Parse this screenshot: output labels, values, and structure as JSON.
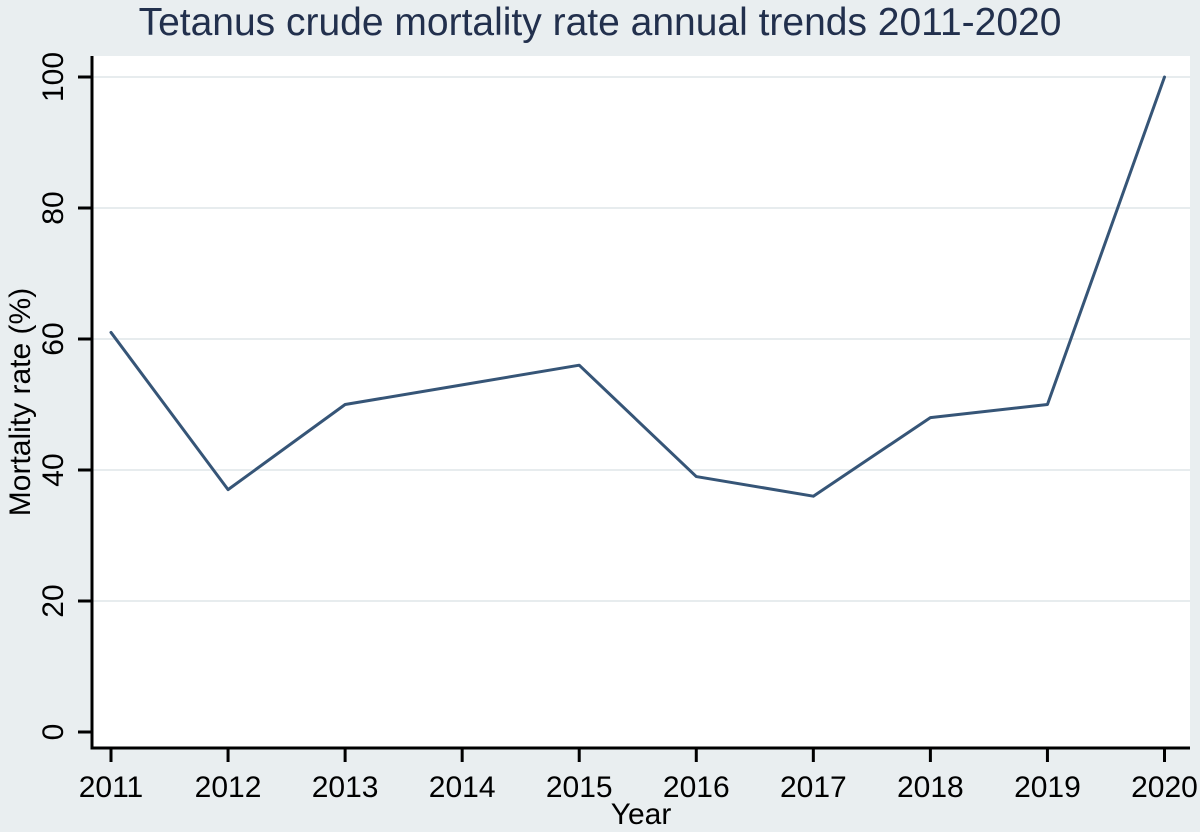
{
  "chart_data": {
    "type": "line",
    "title": "Tetanus crude mortality rate annual trends 2011-2020",
    "xlabel": "Year",
    "ylabel": "Mortality rate (%)",
    "categories": [
      "2011",
      "2012",
      "2013",
      "2014",
      "2015",
      "2016",
      "2017",
      "2018",
      "2019",
      "2020"
    ],
    "series": [
      {
        "name": "Tetanus crude mortality rate",
        "values": [
          61,
          37,
          50,
          53,
          56,
          39,
          36,
          48,
          50,
          100
        ]
      }
    ],
    "ylim": [
      0,
      100
    ],
    "y_ticks": [
      0,
      20,
      40,
      60,
      80,
      100
    ],
    "grid": "horizontal",
    "legend": "none",
    "colors": {
      "line": "#365577",
      "figure_background": "#e9eef0",
      "plot_background": "#ffffff",
      "gridline": "#e7ecee",
      "axis": "#000000",
      "title_text": "#22304d",
      "tick_text": "#000000"
    }
  }
}
